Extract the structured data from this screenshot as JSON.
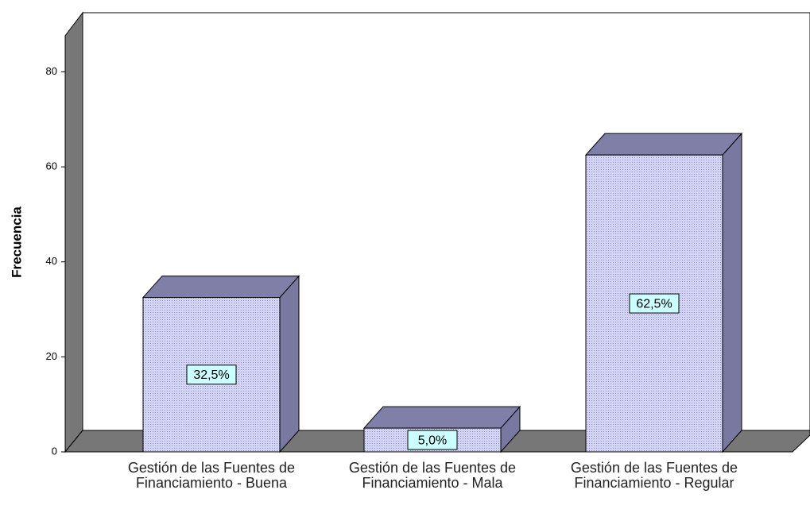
{
  "chart_data": {
    "type": "bar3d",
    "y_label": "Frecuencia",
    "categories": [
      "Gestión de las Fuentes de Financiamiento - Buena",
      "Gestión de las Fuentes de Financiamiento - Mala",
      "Gestión de las Fuentes de Financiamiento - Regular"
    ],
    "values": [
      32.5,
      5.0,
      62.5
    ],
    "value_labels": [
      "32,5%",
      "5,0%",
      "62,5%"
    ],
    "color": "#c8c8f0",
    "ylim": [
      0,
      87.6
    ],
    "yticks": [
      0,
      20,
      40,
      60,
      80
    ]
  }
}
